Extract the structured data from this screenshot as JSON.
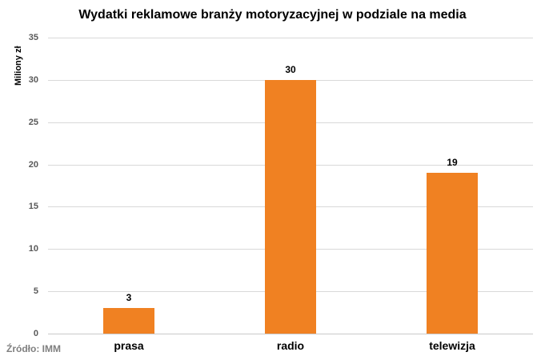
{
  "chart_data": {
    "type": "bar",
    "title": "Wydatki reklamowe branży motoryzacyjnej w podziale na media",
    "xlabel": "",
    "ylabel": "Miliony zł",
    "categories": [
      "prasa",
      "radio",
      "telewizja"
    ],
    "values": [
      3,
      30,
      19
    ],
    "data_labels": [
      "3",
      "30",
      "19"
    ],
    "ylim": [
      0,
      35
    ],
    "yticks": [
      0,
      5,
      10,
      15,
      20,
      25,
      30,
      35
    ],
    "grid": true,
    "legend": false,
    "bar_color": "#f08122",
    "gridline_color": "#d9d9d9",
    "tick_label_color": "#595959"
  },
  "source": "Źródło: IMM"
}
